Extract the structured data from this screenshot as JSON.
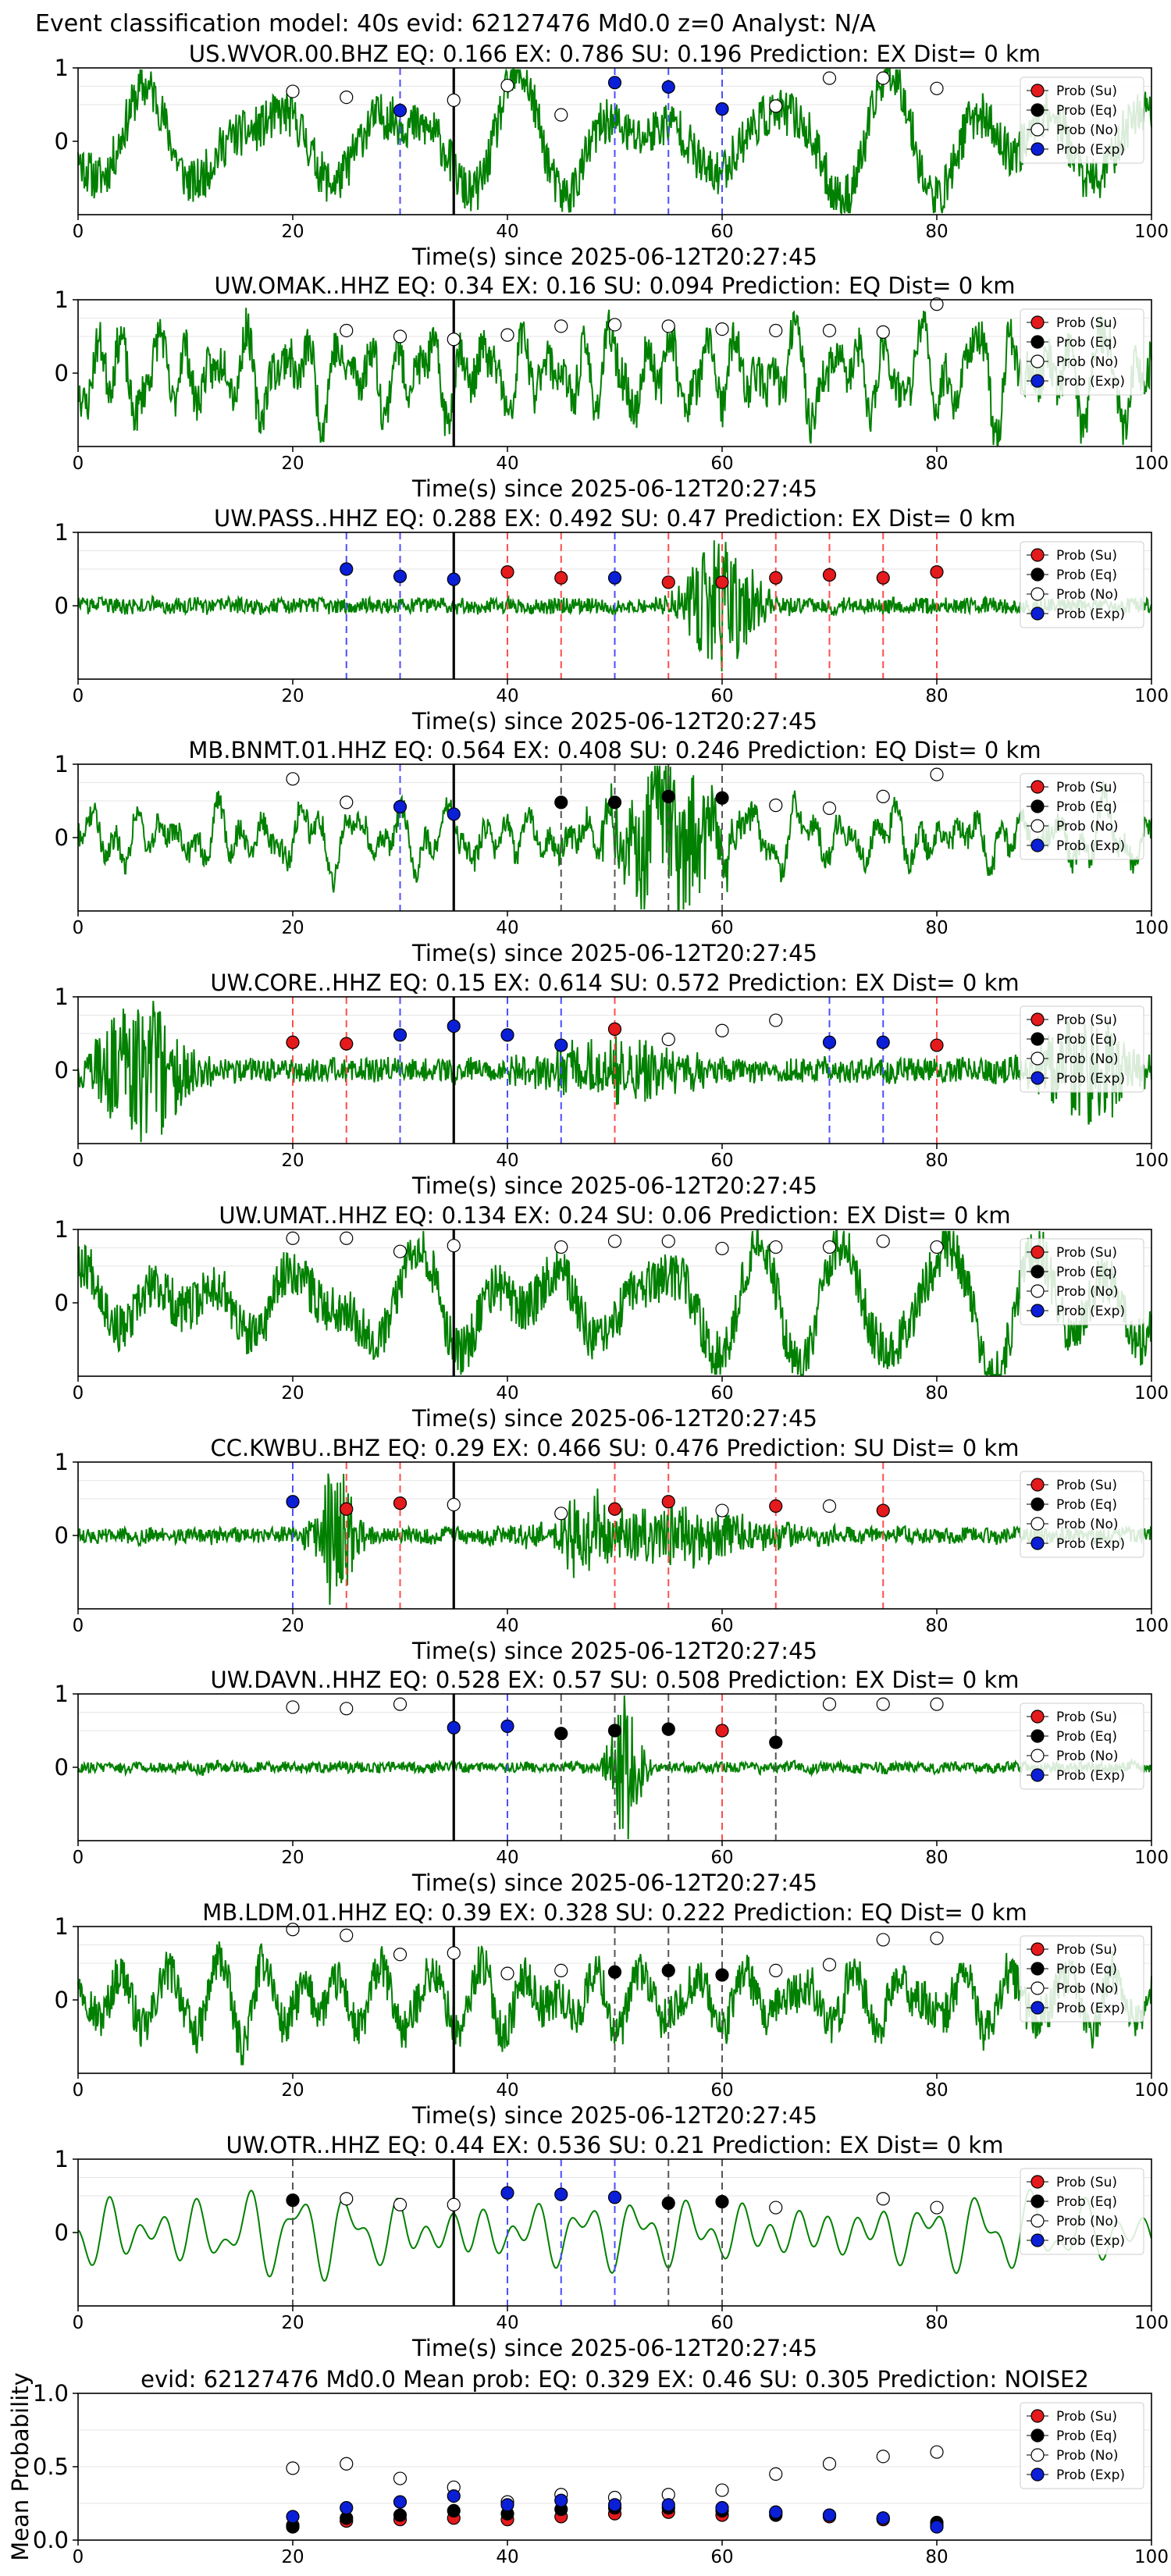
{
  "figure": {
    "title": "Event classification model: 40s evid: 62127476 Md0.0 z=0 Analyst: N/A",
    "event_line_x": 35
  },
  "legend_entries": [
    {
      "label": "Prob (Su)",
      "color": "#e41a1c",
      "fill": "filled"
    },
    {
      "label": "Prob (Eq)",
      "color": "#000000",
      "fill": "filled"
    },
    {
      "label": "Prob (No)",
      "color": "#ffffff",
      "fill": "open"
    },
    {
      "label": "Prob (Exp)",
      "color": "#0a1fd6",
      "fill": "filled"
    }
  ],
  "colors": {
    "waveform": "#008000",
    "su_line": "#ff4d4d",
    "exp_line": "#4d4dff",
    "eq_line": "#555555",
    "event_line": "#000000"
  },
  "chart_data": [
    {
      "type": "line",
      "station": "US.WVOR.00.BHZ",
      "title": "US.WVOR.00.BHZ   EQ: 0.166  EX: 0.786  SU: 0.196   Prediction: EX    Dist= 0 km",
      "xlabel": "Time(s) since 2025-06-12T20:27:45",
      "xlim": [
        0,
        100
      ],
      "ylim": [
        -1,
        1
      ],
      "xticks": [
        "0",
        "20",
        "40",
        "60",
        "80",
        "100"
      ],
      "yticks": [
        "1",
        "0"
      ],
      "waveform": {
        "style": "low",
        "amplitude": 0.78,
        "seed": 11
      },
      "windows": [
        {
          "t": 20,
          "cls": "No",
          "p": 0.68
        },
        {
          "t": 25,
          "cls": "No",
          "p": 0.6
        },
        {
          "t": 30,
          "cls": "Exp",
          "p": 0.42
        },
        {
          "t": 35,
          "cls": "No",
          "p": 0.56
        },
        {
          "t": 40,
          "cls": "No",
          "p": 0.76
        },
        {
          "t": 45,
          "cls": "No",
          "p": 0.36
        },
        {
          "t": 50,
          "cls": "Exp",
          "p": 0.8
        },
        {
          "t": 55,
          "cls": "Exp",
          "p": 0.74
        },
        {
          "t": 60,
          "cls": "Exp",
          "p": 0.44
        },
        {
          "t": 65,
          "cls": "No",
          "p": 0.48
        },
        {
          "t": 70,
          "cls": "No",
          "p": 0.86
        },
        {
          "t": 75,
          "cls": "No",
          "p": 0.86
        },
        {
          "t": 80,
          "cls": "No",
          "p": 0.72
        }
      ]
    },
    {
      "type": "line",
      "station": "UW.OMAK..HHZ",
      "title": "UW.OMAK..HHZ   EQ: 0.34  EX: 0.16  SU: 0.094   Prediction: EQ    Dist= 0 km",
      "xlabel": "Time(s) since 2025-06-12T20:27:45",
      "xlim": [
        0,
        100
      ],
      "ylim": [
        -1,
        1
      ],
      "xticks": [
        "0",
        "20",
        "40",
        "60",
        "80",
        "100"
      ],
      "yticks": [
        "1",
        "0"
      ],
      "waveform": {
        "style": "mid",
        "amplitude": 0.72,
        "seed": 23
      },
      "windows": [
        {
          "t": 25,
          "cls": "No",
          "p": 0.58
        },
        {
          "t": 30,
          "cls": "No",
          "p": 0.5
        },
        {
          "t": 35,
          "cls": "No",
          "p": 0.46
        },
        {
          "t": 40,
          "cls": "No",
          "p": 0.52
        },
        {
          "t": 45,
          "cls": "No",
          "p": 0.64
        },
        {
          "t": 50,
          "cls": "No",
          "p": 0.66
        },
        {
          "t": 55,
          "cls": "No",
          "p": 0.64
        },
        {
          "t": 60,
          "cls": "No",
          "p": 0.6
        },
        {
          "t": 65,
          "cls": "No",
          "p": 0.58
        },
        {
          "t": 70,
          "cls": "No",
          "p": 0.58
        },
        {
          "t": 75,
          "cls": "No",
          "p": 0.56
        },
        {
          "t": 80,
          "cls": "No",
          "p": 0.94
        }
      ]
    },
    {
      "type": "line",
      "station": "UW.PASS..HHZ",
      "title": "UW.PASS..HHZ   EQ: 0.288  EX: 0.492  SU: 0.47   Prediction: EX    Dist= 0 km",
      "xlabel": "Time(s) since 2025-06-12T20:27:45",
      "xlim": [
        0,
        100
      ],
      "ylim": [
        -1,
        1
      ],
      "xticks": [
        "0",
        "20",
        "40",
        "60",
        "80",
        "100"
      ],
      "yticks": [
        "1",
        "0"
      ],
      "waveform": {
        "style": "burst",
        "amplitude": 0.12,
        "burst": [
          {
            "c": 60,
            "w": 7,
            "a": 0.85
          }
        ],
        "seed": 37
      },
      "windows": [
        {
          "t": 25,
          "cls": "Exp",
          "p": 0.5
        },
        {
          "t": 30,
          "cls": "Exp",
          "p": 0.4
        },
        {
          "t": 35,
          "cls": "Exp",
          "p": 0.36
        },
        {
          "t": 40,
          "cls": "Su",
          "p": 0.46
        },
        {
          "t": 45,
          "cls": "Su",
          "p": 0.38
        },
        {
          "t": 50,
          "cls": "Exp",
          "p": 0.38
        },
        {
          "t": 55,
          "cls": "Su",
          "p": 0.32
        },
        {
          "t": 60,
          "cls": "Su",
          "p": 0.32
        },
        {
          "t": 65,
          "cls": "Su",
          "p": 0.38
        },
        {
          "t": 70,
          "cls": "Su",
          "p": 0.42
        },
        {
          "t": 75,
          "cls": "Su",
          "p": 0.38
        },
        {
          "t": 80,
          "cls": "Su",
          "p": 0.46
        }
      ]
    },
    {
      "type": "line",
      "station": "MB.BNMT.01.HHZ",
      "title": "MB.BNMT.01.HHZ   EQ: 0.564  EX: 0.408  SU: 0.246   Prediction: EQ    Dist= 0 km",
      "xlabel": "Time(s) since 2025-06-12T20:27:45",
      "xlim": [
        0,
        100
      ],
      "ylim": [
        -1,
        1
      ],
      "xticks": [
        "0",
        "20",
        "40",
        "60",
        "80",
        "100"
      ],
      "yticks": [
        "1",
        "0"
      ],
      "waveform": {
        "style": "mid",
        "amplitude": 0.42,
        "burst": [
          {
            "c": 55,
            "w": 10,
            "a": 0.85
          }
        ],
        "seed": 41
      },
      "windows": [
        {
          "t": 20,
          "cls": "No",
          "p": 0.8
        },
        {
          "t": 25,
          "cls": "No",
          "p": 0.48
        },
        {
          "t": 30,
          "cls": "Exp",
          "p": 0.42
        },
        {
          "t": 35,
          "cls": "Exp",
          "p": 0.32
        },
        {
          "t": 45,
          "cls": "Eq",
          "p": 0.48
        },
        {
          "t": 50,
          "cls": "Eq",
          "p": 0.48
        },
        {
          "t": 55,
          "cls": "Eq",
          "p": 0.56
        },
        {
          "t": 60,
          "cls": "Eq",
          "p": 0.54
        },
        {
          "t": 65,
          "cls": "No",
          "p": 0.44
        },
        {
          "t": 70,
          "cls": "No",
          "p": 0.4
        },
        {
          "t": 75,
          "cls": "No",
          "p": 0.56
        },
        {
          "t": 80,
          "cls": "No",
          "p": 0.86
        }
      ]
    },
    {
      "type": "line",
      "station": "UW.CORE..HHZ",
      "title": "UW.CORE..HHZ   EQ: 0.15  EX: 0.614  SU: 0.572   Prediction: EX    Dist= 0 km",
      "xlabel": "Time(s) since 2025-06-12T20:27:45",
      "xlim": [
        0,
        100
      ],
      "ylim": [
        -1,
        1
      ],
      "xticks": [
        "0",
        "20",
        "40",
        "60",
        "80",
        "100"
      ],
      "yticks": [
        "1",
        "0"
      ],
      "waveform": {
        "style": "burst",
        "amplitude": 0.18,
        "burst": [
          {
            "c": 6,
            "w": 9,
            "a": 0.9
          },
          {
            "c": 94,
            "w": 8,
            "a": 0.75
          },
          {
            "c": 50,
            "w": 15,
            "a": 0.35
          }
        ],
        "seed": 53
      },
      "windows": [
        {
          "t": 20,
          "cls": "Su",
          "p": 0.38
        },
        {
          "t": 25,
          "cls": "Su",
          "p": 0.36
        },
        {
          "t": 30,
          "cls": "Exp",
          "p": 0.48
        },
        {
          "t": 35,
          "cls": "Exp",
          "p": 0.6
        },
        {
          "t": 40,
          "cls": "Exp",
          "p": 0.48
        },
        {
          "t": 45,
          "cls": "Exp",
          "p": 0.34
        },
        {
          "t": 50,
          "cls": "Su",
          "p": 0.56
        },
        {
          "t": 55,
          "cls": "No",
          "p": 0.42
        },
        {
          "t": 60,
          "cls": "No",
          "p": 0.54
        },
        {
          "t": 65,
          "cls": "No",
          "p": 0.68
        },
        {
          "t": 70,
          "cls": "Exp",
          "p": 0.38
        },
        {
          "t": 75,
          "cls": "Exp",
          "p": 0.38
        },
        {
          "t": 80,
          "cls": "Su",
          "p": 0.34
        }
      ]
    },
    {
      "type": "line",
      "station": "UW.UMAT..HHZ",
      "title": "UW.UMAT..HHZ   EQ: 0.134  EX: 0.24  SU: 0.06   Prediction: EX    Dist= 0 km",
      "xlabel": "Time(s) since 2025-06-12T20:27:45",
      "xlim": [
        0,
        100
      ],
      "ylim": [
        -1,
        1
      ],
      "xticks": [
        "0",
        "20",
        "40",
        "60",
        "80",
        "100"
      ],
      "yticks": [
        "1",
        "0"
      ],
      "waveform": {
        "style": "low",
        "amplitude": 0.82,
        "seed": 67
      },
      "windows": [
        {
          "t": 20,
          "cls": "No",
          "p": 0.88
        },
        {
          "t": 25,
          "cls": "No",
          "p": 0.88
        },
        {
          "t": 30,
          "cls": "No",
          "p": 0.7
        },
        {
          "t": 35,
          "cls": "No",
          "p": 0.78
        },
        {
          "t": 45,
          "cls": "No",
          "p": 0.76
        },
        {
          "t": 50,
          "cls": "No",
          "p": 0.84
        },
        {
          "t": 55,
          "cls": "No",
          "p": 0.84
        },
        {
          "t": 60,
          "cls": "No",
          "p": 0.74
        },
        {
          "t": 65,
          "cls": "No",
          "p": 0.76
        },
        {
          "t": 70,
          "cls": "No",
          "p": 0.76
        },
        {
          "t": 75,
          "cls": "No",
          "p": 0.84
        },
        {
          "t": 80,
          "cls": "No",
          "p": 0.76
        }
      ]
    },
    {
      "type": "line",
      "station": "CC.KWBU..BHZ",
      "title": "CC.KWBU..BHZ   EQ: 0.29  EX: 0.466  SU: 0.476   Prediction: SU    Dist= 0 km",
      "xlabel": "Time(s) since 2025-06-12T20:27:45",
      "xlim": [
        0,
        100
      ],
      "ylim": [
        -1,
        1
      ],
      "xticks": [
        "0",
        "20",
        "40",
        "60",
        "80",
        "100"
      ],
      "yticks": [
        "1",
        "0"
      ],
      "waveform": {
        "style": "burst",
        "amplitude": 0.12,
        "burst": [
          {
            "c": 24,
            "w": 4,
            "a": 0.9
          },
          {
            "c": 47,
            "w": 4,
            "a": 0.6
          },
          {
            "c": 55,
            "w": 20,
            "a": 0.35
          }
        ],
        "seed": 79
      },
      "windows": [
        {
          "t": 20,
          "cls": "Exp",
          "p": 0.46
        },
        {
          "t": 25,
          "cls": "Su",
          "p": 0.36
        },
        {
          "t": 30,
          "cls": "Su",
          "p": 0.44
        },
        {
          "t": 35,
          "cls": "No",
          "p": 0.42
        },
        {
          "t": 45,
          "cls": "No",
          "p": 0.3
        },
        {
          "t": 50,
          "cls": "Su",
          "p": 0.36
        },
        {
          "t": 55,
          "cls": "Su",
          "p": 0.46
        },
        {
          "t": 60,
          "cls": "No",
          "p": 0.34
        },
        {
          "t": 65,
          "cls": "Su",
          "p": 0.4
        },
        {
          "t": 70,
          "cls": "No",
          "p": 0.4
        },
        {
          "t": 75,
          "cls": "Su",
          "p": 0.34
        }
      ]
    },
    {
      "type": "line",
      "station": "UW.DAVN..HHZ",
      "title": "UW.DAVN..HHZ   EQ: 0.528  EX: 0.57  SU: 0.508   Prediction: EX    Dist= 0 km",
      "xlabel": "Time(s) since 2025-06-12T20:27:45",
      "xlim": [
        0,
        100
      ],
      "ylim": [
        -1,
        1
      ],
      "xticks": [
        "0",
        "20",
        "40",
        "60",
        "80",
        "100"
      ],
      "yticks": [
        "1",
        "0"
      ],
      "waveform": {
        "style": "burst",
        "amplitude": 0.08,
        "burst": [
          {
            "c": 51,
            "w": 3,
            "a": 0.9
          }
        ],
        "seed": 83
      },
      "windows": [
        {
          "t": 20,
          "cls": "No",
          "p": 0.82
        },
        {
          "t": 25,
          "cls": "No",
          "p": 0.8
        },
        {
          "t": 30,
          "cls": "No",
          "p": 0.86
        },
        {
          "t": 35,
          "cls": "Exp",
          "p": 0.54
        },
        {
          "t": 40,
          "cls": "Exp",
          "p": 0.56
        },
        {
          "t": 45,
          "cls": "Eq",
          "p": 0.46
        },
        {
          "t": 50,
          "cls": "Eq",
          "p": 0.5
        },
        {
          "t": 55,
          "cls": "Eq",
          "p": 0.52
        },
        {
          "t": 60,
          "cls": "Su",
          "p": 0.5
        },
        {
          "t": 65,
          "cls": "Eq",
          "p": 0.34
        },
        {
          "t": 70,
          "cls": "No",
          "p": 0.86
        },
        {
          "t": 75,
          "cls": "No",
          "p": 0.86
        },
        {
          "t": 80,
          "cls": "No",
          "p": 0.86
        }
      ]
    },
    {
      "type": "line",
      "station": "MB.LDM.01.HHZ",
      "title": "MB.LDM.01.HHZ   EQ: 0.39  EX: 0.328  SU: 0.222   Prediction: EQ    Dist= 0 km",
      "xlabel": "Time(s) since 2025-06-12T20:27:45",
      "xlim": [
        0,
        100
      ],
      "ylim": [
        -1,
        1
      ],
      "xticks": [
        "0",
        "20",
        "40",
        "60",
        "80",
        "100"
      ],
      "yticks": [
        "1",
        "0"
      ],
      "waveform": {
        "style": "mid",
        "amplitude": 0.72,
        "seed": 97
      },
      "windows": [
        {
          "t": 20,
          "cls": "No",
          "p": 0.96
        },
        {
          "t": 25,
          "cls": "No",
          "p": 0.88
        },
        {
          "t": 30,
          "cls": "No",
          "p": 0.62
        },
        {
          "t": 35,
          "cls": "No",
          "p": 0.64
        },
        {
          "t": 40,
          "cls": "No",
          "p": 0.36
        },
        {
          "t": 45,
          "cls": "No",
          "p": 0.4
        },
        {
          "t": 50,
          "cls": "Eq",
          "p": 0.38
        },
        {
          "t": 55,
          "cls": "Eq",
          "p": 0.4
        },
        {
          "t": 60,
          "cls": "Eq",
          "p": 0.34
        },
        {
          "t": 65,
          "cls": "No",
          "p": 0.4
        },
        {
          "t": 70,
          "cls": "No",
          "p": 0.48
        },
        {
          "t": 75,
          "cls": "No",
          "p": 0.82
        },
        {
          "t": 80,
          "cls": "No",
          "p": 0.84
        }
      ]
    },
    {
      "type": "line",
      "station": "UW.OTR..HHZ",
      "title": "UW.OTR..HHZ   EQ: 0.44  EX: 0.536  SU: 0.21   Prediction: EX    Dist= 0 km",
      "xlabel": "Time(s) since 2025-06-12T20:27:45",
      "xlim": [
        0,
        100
      ],
      "ylim": [
        -1,
        1
      ],
      "xticks": [
        "0",
        "20",
        "40",
        "60",
        "80",
        "100"
      ],
      "yticks": [
        "1",
        "0"
      ],
      "waveform": {
        "style": "smooth",
        "amplitude": 0.55,
        "seed": 101
      },
      "windows": [
        {
          "t": 20,
          "cls": "Eq",
          "p": 0.44
        },
        {
          "t": 25,
          "cls": "No",
          "p": 0.46
        },
        {
          "t": 30,
          "cls": "No",
          "p": 0.38
        },
        {
          "t": 35,
          "cls": "No",
          "p": 0.38
        },
        {
          "t": 40,
          "cls": "Exp",
          "p": 0.54
        },
        {
          "t": 45,
          "cls": "Exp",
          "p": 0.52
        },
        {
          "t": 50,
          "cls": "Exp",
          "p": 0.48
        },
        {
          "t": 55,
          "cls": "Eq",
          "p": 0.4
        },
        {
          "t": 60,
          "cls": "Eq",
          "p": 0.42
        },
        {
          "t": 65,
          "cls": "No",
          "p": 0.34
        },
        {
          "t": 75,
          "cls": "No",
          "p": 0.46
        },
        {
          "t": 80,
          "cls": "No",
          "p": 0.34
        }
      ]
    },
    {
      "type": "scatter",
      "title": "evid: 62127476  Md0.0   Mean prob:   EQ: 0.329  EX: 0.46  SU: 0.305   Prediction: NOISE2",
      "ylabel": "Mean Probability",
      "xlim": [
        0,
        100
      ],
      "ylim": [
        0,
        1
      ],
      "xticks": [
        "0",
        "20",
        "40",
        "60",
        "80",
        "100"
      ],
      "yticks": [
        "0.0",
        "0.5",
        "1.0"
      ],
      "x": [
        20,
        25,
        30,
        35,
        40,
        45,
        50,
        55,
        60,
        65,
        70,
        75,
        80
      ],
      "series": [
        {
          "name": "Prob (Su)",
          "values": [
            0.1,
            0.13,
            0.14,
            0.15,
            0.14,
            0.16,
            0.18,
            0.19,
            0.17,
            0.19,
            0.16,
            0.14,
            0.1
          ]
        },
        {
          "name": "Prob (Eq)",
          "values": [
            0.09,
            0.15,
            0.17,
            0.2,
            0.18,
            0.21,
            0.22,
            0.22,
            0.2,
            0.17,
            0.17,
            0.15,
            0.12
          ]
        },
        {
          "name": "Prob (No)",
          "values": [
            0.49,
            0.52,
            0.42,
            0.36,
            0.26,
            0.31,
            0.29,
            0.31,
            0.34,
            0.45,
            0.52,
            0.57,
            0.6
          ]
        },
        {
          "name": "Prob (Exp)",
          "values": [
            0.16,
            0.22,
            0.26,
            0.3,
            0.24,
            0.27,
            0.24,
            0.24,
            0.22,
            0.19,
            0.17,
            0.15,
            0.09
          ]
        }
      ]
    }
  ]
}
